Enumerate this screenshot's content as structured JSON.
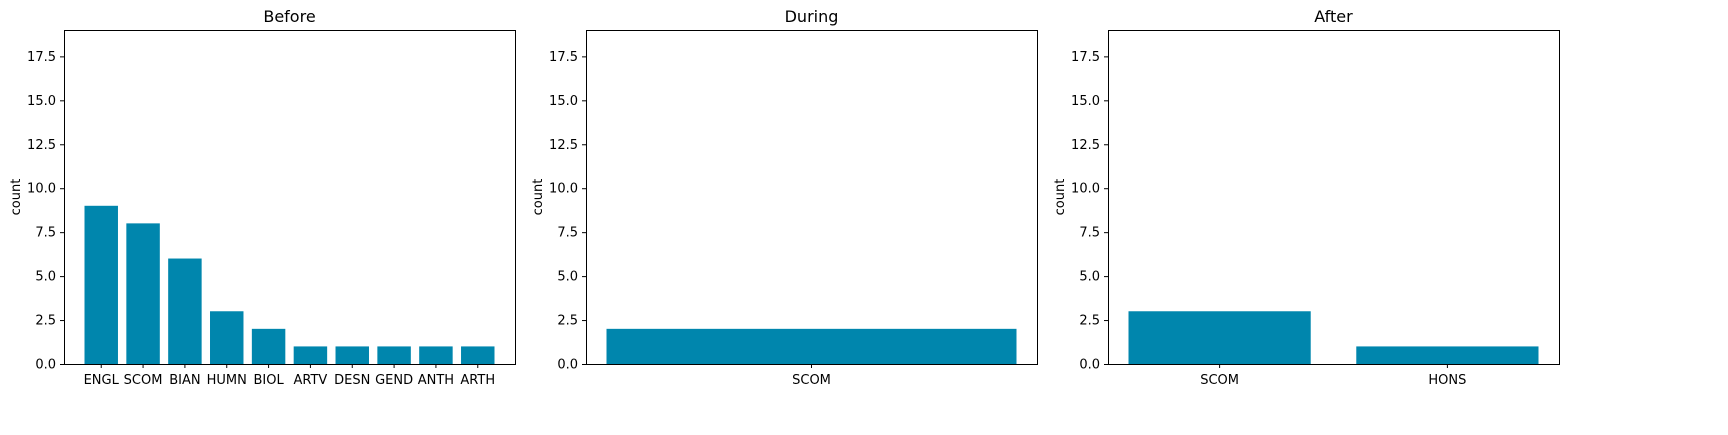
{
  "colors": {
    "bar": "#0086ad",
    "axis": "#000000"
  },
  "chart_data": [
    {
      "type": "bar",
      "title": "Before",
      "xlabel": "",
      "ylabel": "count",
      "ylim": [
        0,
        19
      ],
      "yticks": [
        0.0,
        2.5,
        5.0,
        7.5,
        10.0,
        12.5,
        15.0,
        17.5
      ],
      "categories": [
        "ENGL",
        "SCOM",
        "BIAN",
        "HUMN",
        "BIOL",
        "ARTV",
        "DESN",
        "GEND",
        "ANTH",
        "ARTH"
      ],
      "values": [
        9,
        8,
        6,
        3,
        2,
        1,
        1,
        1,
        1,
        1
      ]
    },
    {
      "type": "bar",
      "title": "During",
      "xlabel": "",
      "ylabel": "count",
      "ylim": [
        0,
        19
      ],
      "yticks": [
        0.0,
        2.5,
        5.0,
        7.5,
        10.0,
        12.5,
        15.0,
        17.5
      ],
      "categories": [
        "SCOM"
      ],
      "values": [
        2
      ]
    },
    {
      "type": "bar",
      "title": "After",
      "xlabel": "",
      "ylabel": "count",
      "ylim": [
        0,
        19
      ],
      "yticks": [
        0.0,
        2.5,
        5.0,
        7.5,
        10.0,
        12.5,
        15.0,
        17.5
      ],
      "categories": [
        "SCOM",
        "HONS"
      ],
      "values": [
        3,
        1
      ]
    }
  ]
}
